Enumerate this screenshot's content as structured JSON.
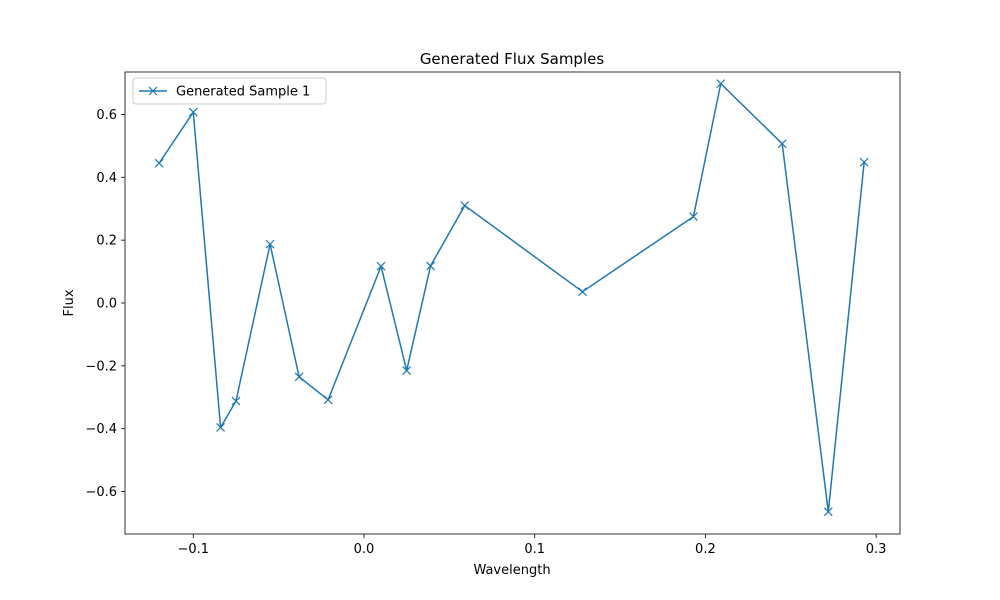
{
  "chart_data": {
    "type": "line",
    "title": "Generated Flux Samples",
    "xlabel": "Wavelength",
    "ylabel": "Flux",
    "xlim": [
      -0.14,
      0.314
    ],
    "ylim": [
      -0.735,
      0.735
    ],
    "x_ticks": [
      -0.1,
      0.0,
      0.1,
      0.2,
      0.3
    ],
    "x_tick_labels": [
      "−0.1",
      "0.0",
      "0.1",
      "0.2",
      "0.3"
    ],
    "y_ticks": [
      -0.6,
      -0.4,
      -0.2,
      0.0,
      0.2,
      0.4,
      0.6
    ],
    "y_tick_labels": [
      "−0.6",
      "−0.4",
      "−0.2",
      "0.0",
      "0.2",
      "0.4",
      "0.6"
    ],
    "grid": false,
    "legend": {
      "position": "upper-left",
      "entries": [
        "Generated Sample 1"
      ]
    },
    "colors": {
      "series": "#1f77b4",
      "axes": "#000000",
      "background": "#ffffff"
    },
    "series": [
      {
        "name": "Generated Sample 1",
        "marker": "x",
        "x": [
          -0.12,
          -0.1,
          -0.084,
          -0.075,
          -0.055,
          -0.038,
          -0.021,
          0.01,
          0.025,
          0.039,
          0.059,
          0.128,
          0.193,
          0.209,
          0.245,
          0.272,
          0.293
        ],
        "y": [
          0.445,
          0.607,
          -0.396,
          -0.312,
          0.187,
          -0.235,
          -0.308,
          0.117,
          -0.215,
          0.118,
          0.31,
          0.036,
          0.275,
          0.698,
          0.507,
          -0.664,
          0.448
        ]
      }
    ]
  }
}
